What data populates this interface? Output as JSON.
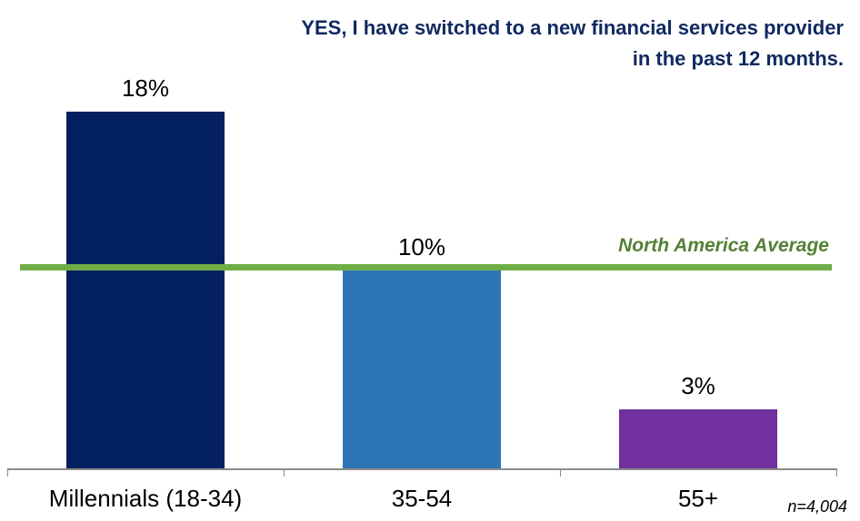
{
  "chart_data": {
    "type": "bar",
    "title": "YES, I have switched to a new financial services provider in the past 12 months.",
    "title_lines": [
      "YES, I have switched to a new financial services provider",
      "in the past 12 months."
    ],
    "categories": [
      "Millennials (18-34)",
      "35-54",
      "55+"
    ],
    "category_keys": [
      "millennials-18-34",
      "35-54",
      "55-plus"
    ],
    "values": [
      18,
      10,
      3
    ],
    "value_labels": [
      "18%",
      "10%",
      "3%"
    ],
    "bar_colors": [
      "#032160",
      "#2e75b6",
      "#7030a0"
    ],
    "ylim": [
      0,
      23
    ],
    "grid": false,
    "legend": "none",
    "title_color": "#102a61",
    "x_axis_color": "#8a8a8a",
    "reference_line": {
      "label": "North America Average",
      "value": 10.2,
      "line_color": "#70ad47",
      "label_color": "#538135"
    },
    "sample_note": "n=4,004"
  }
}
